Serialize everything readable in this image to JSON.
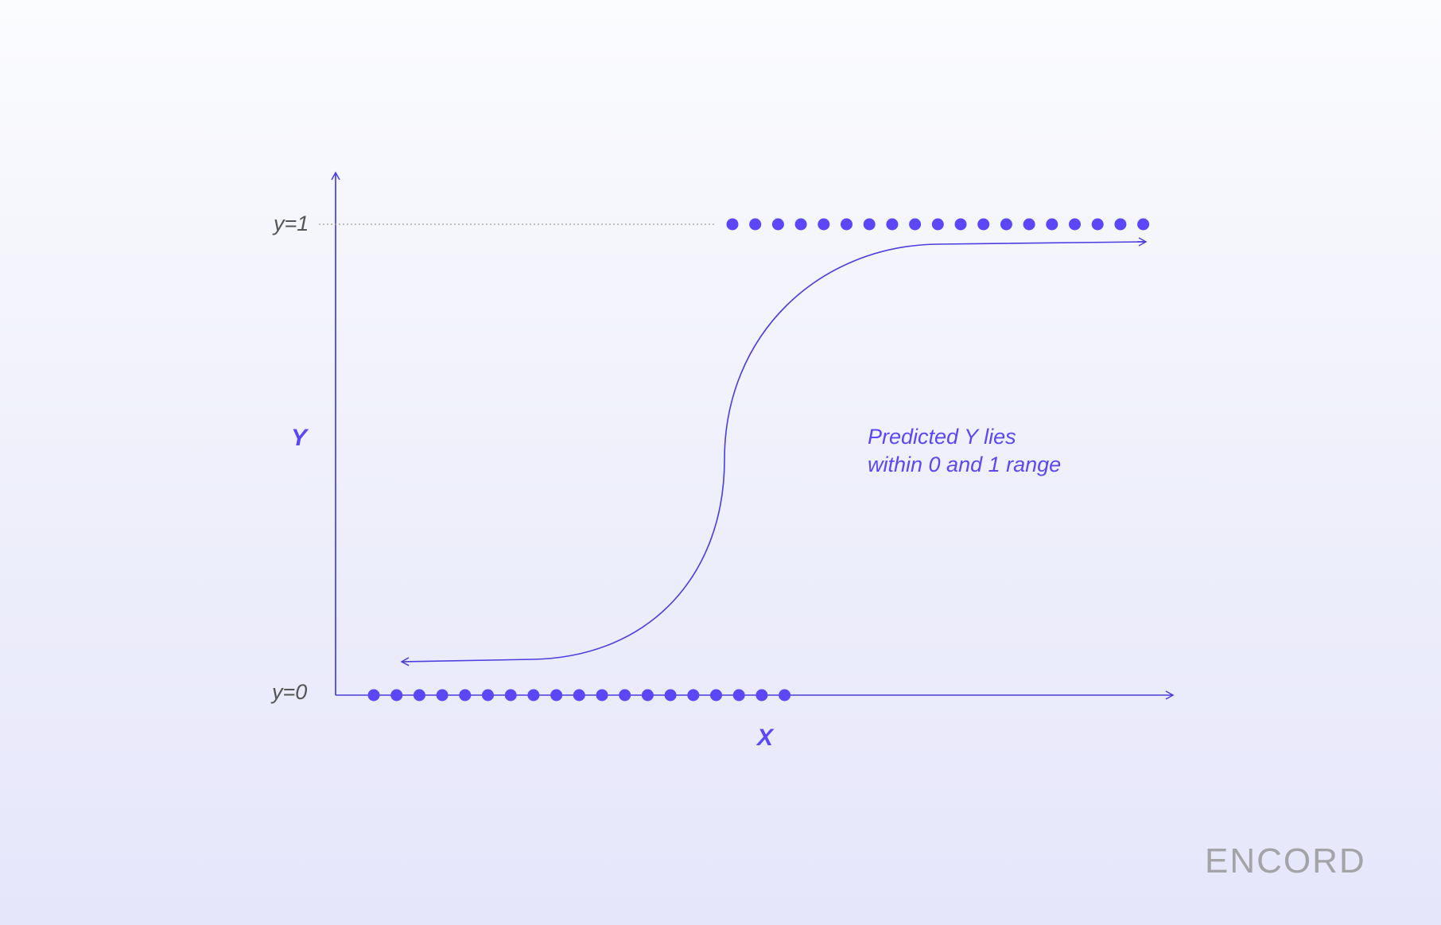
{
  "labels": {
    "y_one": "y=1",
    "y_zero": "y=0",
    "y_axis": "Y",
    "x_axis": "X",
    "annotation_line1": "Predicted Y lies",
    "annotation_line2": "within 0 and 1 range"
  },
  "logo": "ENCORD",
  "colors": {
    "accent": "#5b47f5",
    "axis": "#4b3de0",
    "text": "#555555"
  },
  "points": {
    "class_0_count": 19,
    "class_1_count": 19
  }
}
